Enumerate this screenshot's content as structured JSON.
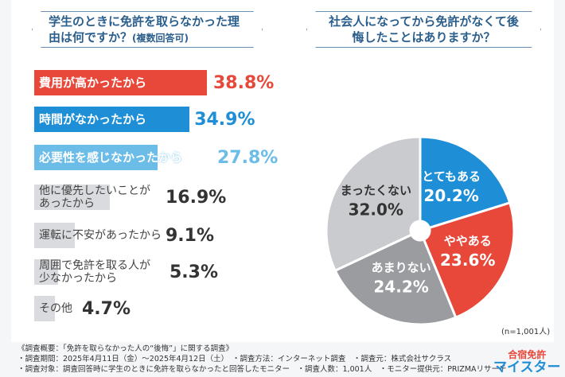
{
  "chart_data": [
    {
      "type": "bar",
      "orientation": "horizontal",
      "title": "学生のときに免許を取らなかった理由は何ですか？",
      "title_note": "(複数回答可)",
      "categories": [
        "費用が高かったから",
        "時間がなかったから",
        "必要性を感じなかったから",
        "他に優先したいことがあったから",
        "運転に不安があったから",
        "周囲で免許を取る人が少なかったから",
        "その他"
      ],
      "values": [
        38.8,
        34.9,
        27.8,
        16.9,
        9.1,
        5.3,
        4.7
      ],
      "value_labels": [
        "38.8%",
        "34.9%",
        "27.8%",
        "16.9%",
        "9.1%",
        "5.3%",
        "4.7%"
      ],
      "colors": [
        "#e8483a",
        "#1e8fd6",
        "#6cbce8",
        "#d9dbde",
        "#d9dbde",
        "#d9dbde",
        "#d9dbde"
      ],
      "value_colors": [
        "#e8483a",
        "#1e8fd6",
        "#6cbce8",
        "#333333",
        "#333333",
        "#333333",
        "#333333"
      ]
    },
    {
      "type": "pie",
      "title": "社会人になってから免許がなくて後悔したことはありますか？",
      "categories": [
        "とてもある",
        "ややある",
        "あまりない",
        "まったくない"
      ],
      "values": [
        20.2,
        23.6,
        24.2,
        32.0
      ],
      "value_labels": [
        "20.2%",
        "23.6%",
        "24.2%",
        "32.0%"
      ],
      "colors": [
        "#1e8fd6",
        "#e8483a",
        "#9a9ca0",
        "#c9cbce"
      ],
      "note": "(n=1,001人)"
    }
  ],
  "footer": {
    "lines": [
      "《調査概要：「免許を取らなかった人の“後悔”」に関する調査》",
      "・調査期間：2025年4月11日（金）～2025年4月12日（土）　・調査方法：インターネット調査　・調査元：株式会社サクラス",
      "・調査対象：調査回答時に学生のときに免許を取らなかったと回答したモニター　・調査人数：1,001人　・モニター提供元：PRIZMAリサーチ"
    ]
  },
  "logo": {
    "line1": "合宿免許",
    "line2": "マイスター"
  }
}
